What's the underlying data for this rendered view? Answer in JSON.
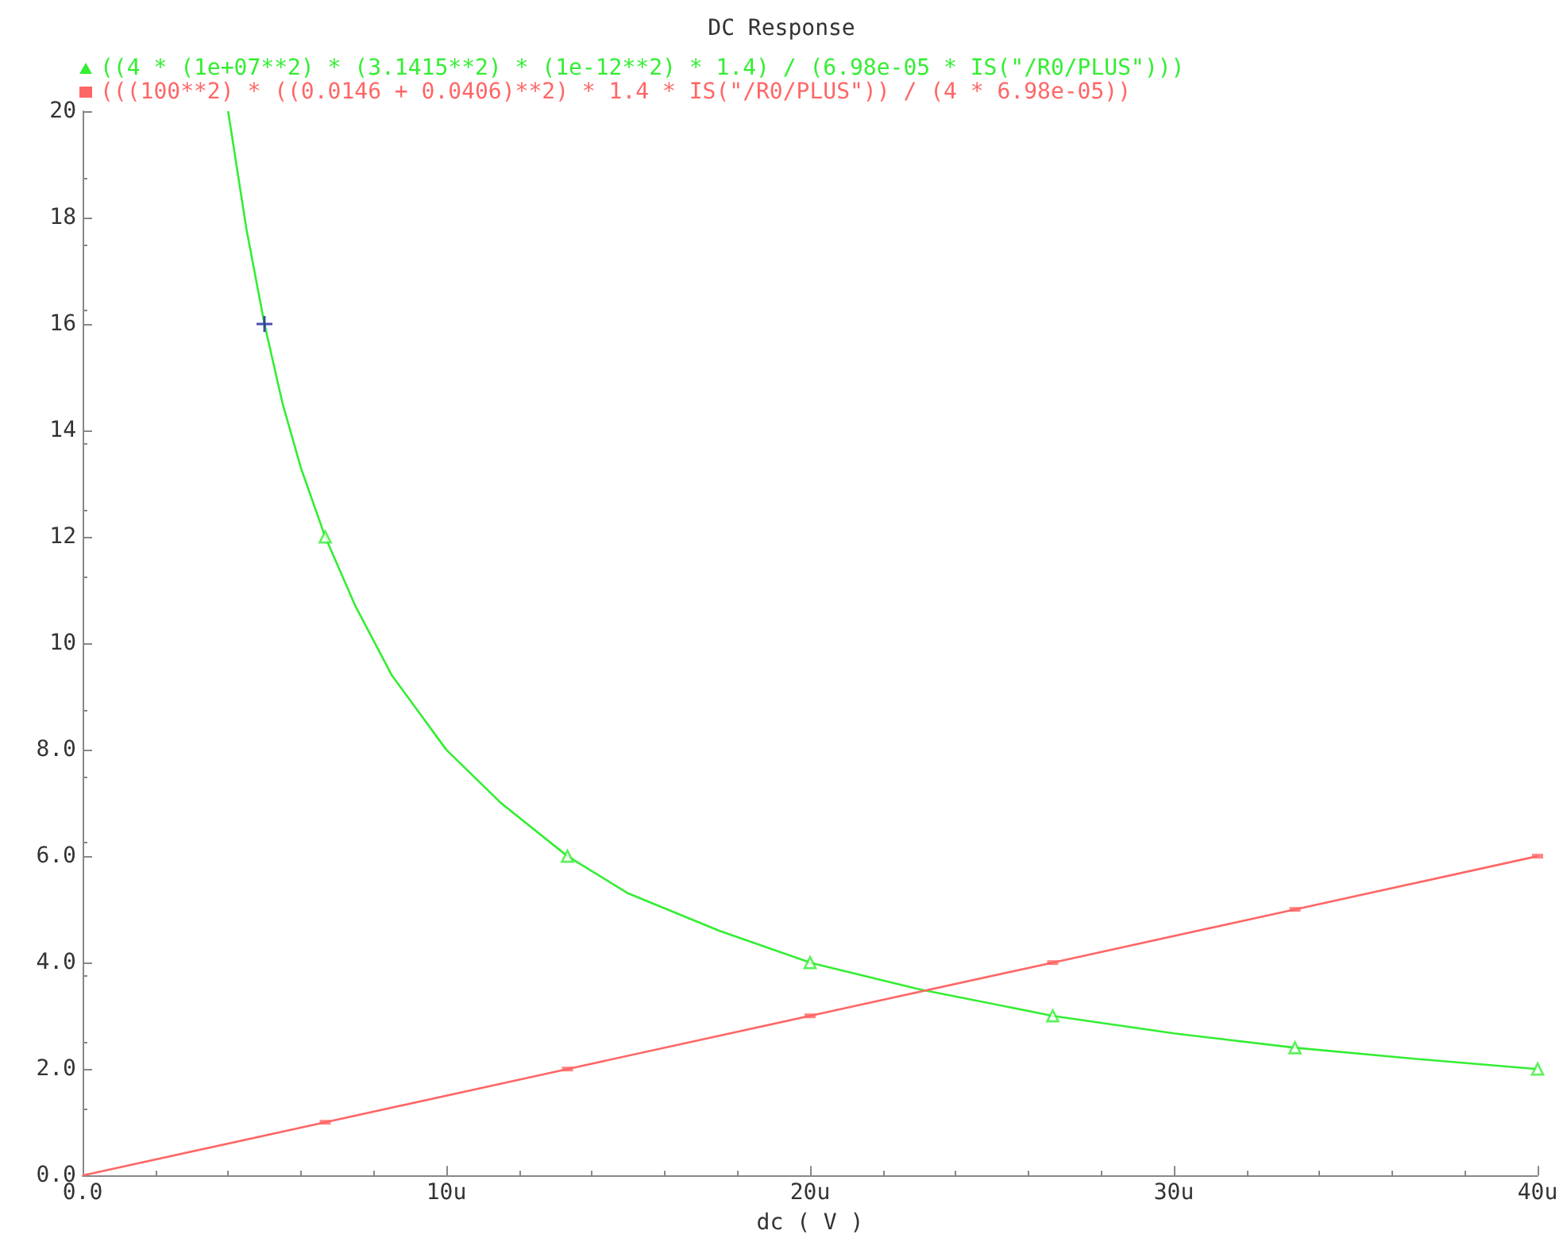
{
  "chart_data": {
    "type": "line",
    "title": "DC Response",
    "xlabel": "dc ( V )",
    "xlim": [
      0,
      40
    ],
    "xticks": [
      {
        "value": 0,
        "label": "0.0"
      },
      {
        "value": 10,
        "label": "10u"
      },
      {
        "value": 20,
        "label": "20u"
      },
      {
        "value": 30,
        "label": "30u"
      },
      {
        "value": 40,
        "label": "40u"
      }
    ],
    "ylim": [
      0,
      20
    ],
    "yticks": [
      {
        "value": 0,
        "label": "0.0"
      },
      {
        "value": 2,
        "label": "2.0"
      },
      {
        "value": 4,
        "label": "4.0"
      },
      {
        "value": 6,
        "label": "6.0"
      },
      {
        "value": 8,
        "label": "8.0"
      },
      10,
      12,
      14,
      16,
      18,
      20
    ],
    "grid": false,
    "legend": "top left",
    "series": [
      {
        "name": "((4 * (1e+07**2) * (3.1415**2) * (1e-12**2) * 1.4) / (6.98e-05 * IS(\"/R0/PLUS\")))",
        "color": "#33ee33",
        "marker": "none",
        "x": [
          4,
          4.5,
          5,
          5.5,
          6,
          6.67,
          7.5,
          8.5,
          10,
          11.5,
          13.33,
          15,
          17.5,
          20,
          23,
          26.67,
          30,
          33.33,
          36.5,
          40
        ],
        "values": [
          20,
          17.8,
          16,
          14.5,
          13.3,
          12.0,
          10.7,
          9.4,
          8.0,
          7.0,
          6.0,
          5.3,
          4.6,
          4.0,
          3.5,
          3.0,
          2.67,
          2.4,
          2.2,
          2.0
        ]
      },
      {
        "type": "scatter",
        "color": "#33ee33",
        "marker": "triangle",
        "x": [
          6.67,
          13.33,
          20,
          26.67,
          33.33,
          40
        ],
        "values": [
          12.0,
          6.0,
          4.0,
          3.0,
          2.4,
          2.0
        ]
      },
      {
        "name": "(((100**2) * ((0.0146 + 0.0406)**2) * 1.4 * IS(\"/R0/PLUS\")) / (4 * 6.98e-05))",
        "color": "#ff6666",
        "marker": "none",
        "x": [
          0,
          6.67,
          13.33,
          20,
          26.67,
          33.33,
          40
        ],
        "values": [
          0,
          1.0,
          2.0,
          3.0,
          4.0,
          5.0,
          6.0
        ]
      },
      {
        "type": "scatter",
        "color": "#ff6666",
        "marker": "square",
        "x": [
          6.67,
          13.33,
          20,
          26.67,
          33.33,
          40
        ],
        "values": [
          1.0,
          2.0,
          3.0,
          4.0,
          5.0,
          6.0
        ]
      },
      {
        "type": "scatter",
        "color": "#2020a0",
        "marker": "cross",
        "x": [
          5
        ],
        "values": [
          16
        ]
      }
    ]
  }
}
